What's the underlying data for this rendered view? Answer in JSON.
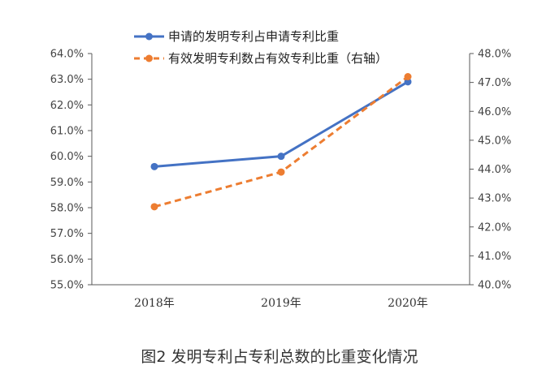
{
  "chart_data": {
    "type": "line",
    "title": "",
    "caption": "图2 发明专利占专利总数的比重变化情况",
    "categories": [
      "2018年",
      "2019年",
      "2020年"
    ],
    "series": [
      {
        "name": "申请的发明专利占申请专利比重",
        "axis": "left",
        "color": "#4472C4",
        "dash": "solid",
        "values": [
          59.6,
          60.0,
          62.9
        ]
      },
      {
        "name": "有效发明专利数占有效专利比重（右轴）",
        "axis": "right",
        "color": "#ED7D31",
        "dash": "dashed",
        "values": [
          42.7,
          43.9,
          47.2
        ]
      }
    ],
    "y_left": {
      "min": 55.0,
      "max": 64.0,
      "step": 1.0,
      "ticks": [
        "55.0%",
        "56.0%",
        "57.0%",
        "58.0%",
        "59.0%",
        "60.0%",
        "61.0%",
        "62.0%",
        "63.0%",
        "64.0%"
      ]
    },
    "y_right": {
      "min": 40.0,
      "max": 48.0,
      "step": 1.0,
      "ticks": [
        "40.0%",
        "41.0%",
        "42.0%",
        "43.0%",
        "44.0%",
        "45.0%",
        "46.0%",
        "47.0%",
        "48.0%"
      ]
    },
    "legend_position": "top",
    "grid": false
  }
}
